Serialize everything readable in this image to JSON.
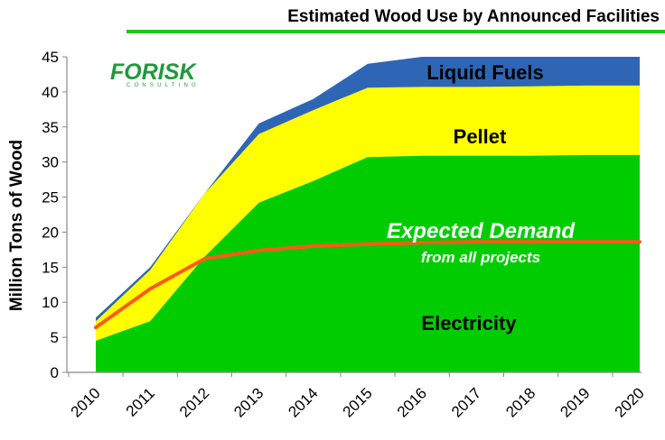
{
  "chart_data": {
    "type": "area",
    "title": "Estimated Wood Use by Announced Facilities",
    "ylabel": "Million Tons of Wood",
    "xlabel": "",
    "ylim": [
      0,
      45
    ],
    "yticks": [
      0,
      5,
      10,
      15,
      20,
      25,
      30,
      35,
      40,
      45
    ],
    "categories": [
      "2010",
      "2011",
      "2012",
      "2013",
      "2014",
      "2015",
      "2016",
      "2017",
      "2018",
      "2019",
      "2020"
    ],
    "grid": false,
    "series": [
      {
        "name": "Electricity",
        "color": "#00cc00",
        "cumulative": [
          4.5,
          7.3,
          16.5,
          24.2,
          27.3,
          30.7,
          30.9,
          30.9,
          30.9,
          31.0,
          31.0
        ]
      },
      {
        "name": "Pellet",
        "color": "#ffff00",
        "cumulative": [
          7.3,
          14.6,
          25.5,
          34.0,
          37.4,
          40.6,
          40.7,
          40.7,
          40.8,
          40.9,
          40.9
        ]
      },
      {
        "name": "Liquid Fuels",
        "color": "#2e66b5",
        "cumulative": [
          7.8,
          15.0,
          25.5,
          35.5,
          39.0,
          44.0,
          45.0,
          45.0,
          45.0,
          45.0,
          45.0
        ]
      }
    ],
    "line": {
      "name": "Expected Demand",
      "subtitle": "from all projects",
      "color": "#ff5a1a",
      "values": [
        6.4,
        11.9,
        16.2,
        17.4,
        18.0,
        18.3,
        18.5,
        18.6,
        18.6,
        18.6,
        18.6
      ]
    },
    "logo": {
      "text": "FORISK",
      "subtext": "CONSULTING",
      "color": "#1f9a3c"
    }
  }
}
